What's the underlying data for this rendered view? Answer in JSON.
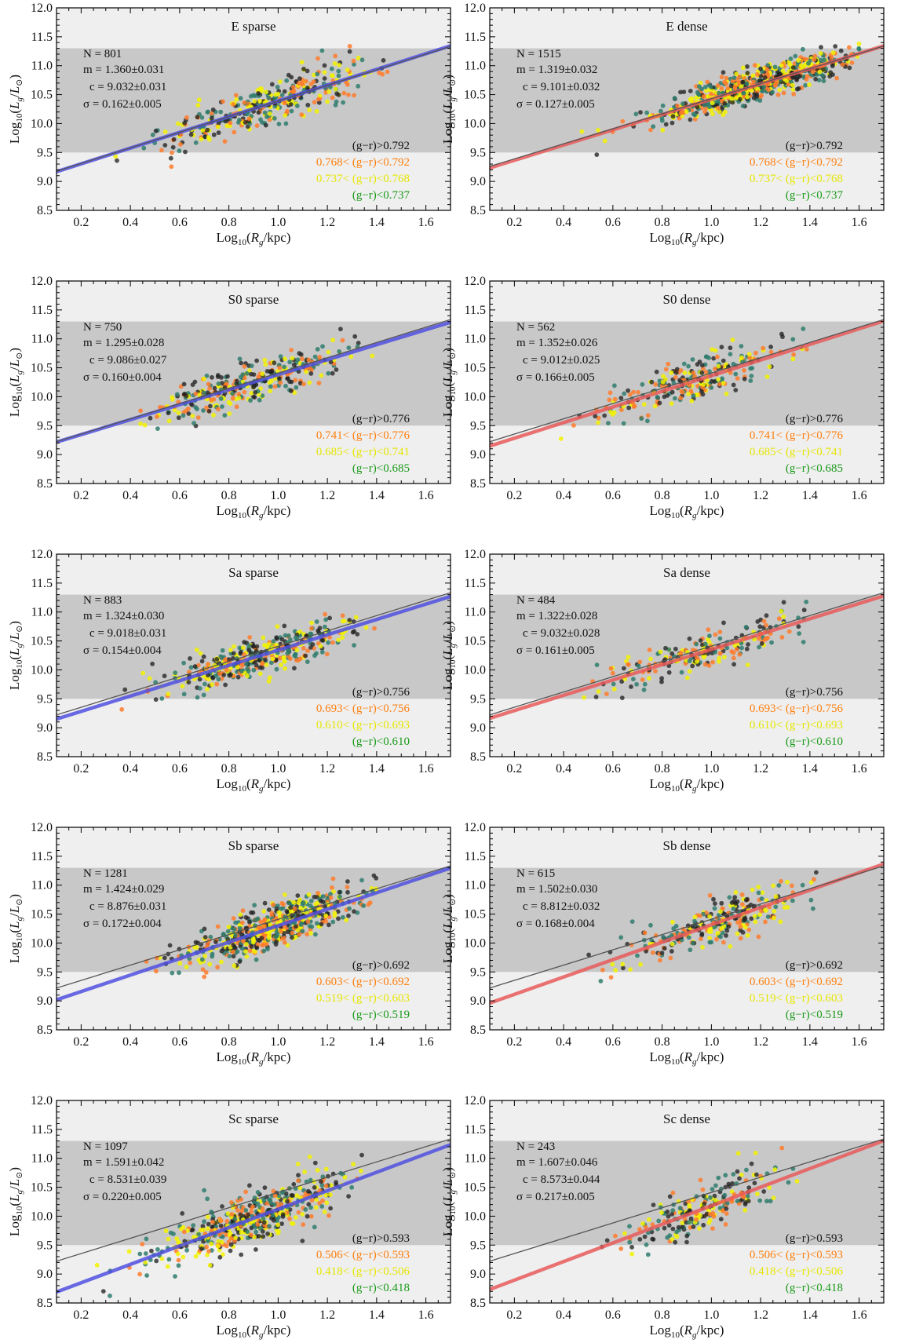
{
  "figure": {
    "xlabel": "Log10(Rg/kpc)",
    "ylabel": "Log10(Lg/L⊙)"
  },
  "colors": {
    "outer_band": "#efefef",
    "inner_band": "#c8c8c8",
    "sparse_fit": "#5050e0",
    "dense_fit": "#e85a5a",
    "reference_line": "#555555",
    "text_black": "#111111",
    "text_orange": "#ff7f0e",
    "text_yellow": "#e6e600",
    "text_green": "#1a9a1a",
    "pts_black": "#222222",
    "pts_orange": "#ff7b2a",
    "pts_yellow": "#f2f200",
    "pts_teal": "#2f7d6d"
  },
  "chart_data": [
    {
      "type": "scatter",
      "title": "E sparse",
      "env": "sparse",
      "xlim": [
        0.1,
        1.7
      ],
      "ylim": [
        8.5,
        12.0
      ],
      "xticks": [
        0.2,
        0.4,
        0.6,
        0.8,
        1.0,
        1.2,
        1.4,
        1.6
      ],
      "yticks": [
        8.5,
        9.0,
        9.5,
        10.0,
        10.5,
        11.0,
        11.5,
        12.0
      ],
      "band_outer": [
        8.5,
        12.0
      ],
      "band_inner": [
        9.5,
        11.3
      ],
      "stats": {
        "N": "N = 801",
        "m": "m = 1.360±0.031",
        "c": "c = 9.032±0.031",
        "sigma": "σ = 0.162±0.005"
      },
      "color_bins": [
        "(g−r)>0.792",
        "0.768< (g−r)<0.792",
        "0.737< (g−r)<0.768",
        "(g−r)<0.737"
      ],
      "fit": {
        "m": 1.36,
        "c": 9.032
      },
      "reference": {
        "m": 1.35,
        "c": 9.04
      },
      "cloud": {
        "xmin": 0.3,
        "xmax": 1.45,
        "xmean": 0.95,
        "xsd": 0.22,
        "scatter": 0.19
      }
    },
    {
      "type": "scatter",
      "title": "E dense",
      "env": "dense",
      "xlim": [
        0.1,
        1.7
      ],
      "ylim": [
        8.5,
        12.0
      ],
      "xticks": [
        0.2,
        0.4,
        0.6,
        0.8,
        1.0,
        1.2,
        1.4,
        1.6
      ],
      "yticks": [
        8.5,
        9.0,
        9.5,
        10.0,
        10.5,
        11.0,
        11.5,
        12.0
      ],
      "band_outer": [
        8.5,
        12.0
      ],
      "band_inner": [
        9.5,
        11.3
      ],
      "stats": {
        "N": "N = 1515",
        "m": "m = 1.319±0.032",
        "c": "c = 9.101±0.032",
        "sigma": "σ = 0.127±0.005"
      },
      "color_bins": [
        "(g−r)>0.792",
        "0.768< (g−r)<0.792",
        "0.737< (g−r)<0.768",
        "(g−r)<0.737"
      ],
      "fit": {
        "m": 1.319,
        "c": 9.101
      },
      "reference": {
        "m": 1.3,
        "c": 9.13
      },
      "cloud": {
        "xmin": 0.45,
        "xmax": 1.6,
        "xmean": 1.18,
        "xsd": 0.2,
        "scatter": 0.15
      }
    },
    {
      "type": "scatter",
      "title": "S0 sparse",
      "env": "sparse",
      "xlim": [
        0.1,
        1.7
      ],
      "ylim": [
        8.5,
        12.0
      ],
      "xticks": [
        0.2,
        0.4,
        0.6,
        0.8,
        1.0,
        1.2,
        1.4,
        1.6
      ],
      "yticks": [
        8.5,
        9.0,
        9.5,
        10.0,
        10.5,
        11.0,
        11.5,
        12.0
      ],
      "band_outer": [
        8.5,
        12.0
      ],
      "band_inner": [
        9.5,
        11.3
      ],
      "stats": {
        "N": "N = 750",
        "m": "m = 1.295±0.028",
        "c": "c = 9.086±0.027",
        "sigma": "σ = 0.160±0.004"
      },
      "color_bins": [
        "(g−r)>0.776",
        "0.741< (g−r)<0.776",
        "0.685< (g−r)<0.741",
        "(g−r)<0.685"
      ],
      "fit": {
        "m": 1.295,
        "c": 9.086
      },
      "reference": {
        "m": 1.32,
        "c": 9.09
      },
      "cloud": {
        "xmin": 0.4,
        "xmax": 1.4,
        "xmean": 0.88,
        "xsd": 0.2,
        "scatter": 0.18
      }
    },
    {
      "type": "scatter",
      "title": "S0 dense",
      "env": "dense",
      "xlim": [
        0.1,
        1.7
      ],
      "ylim": [
        8.5,
        12.0
      ],
      "xticks": [
        0.2,
        0.4,
        0.6,
        0.8,
        1.0,
        1.2,
        1.4,
        1.6
      ],
      "yticks": [
        8.5,
        9.0,
        9.5,
        10.0,
        10.5,
        11.0,
        11.5,
        12.0
      ],
      "band_outer": [
        8.5,
        12.0
      ],
      "band_inner": [
        9.5,
        11.3
      ],
      "stats": {
        "N": "N = 562",
        "m": "m = 1.352±0.026",
        "c": "c = 9.012±0.025",
        "sigma": "σ = 0.166±0.005"
      },
      "color_bins": [
        "(g−r)>0.776",
        "0.741< (g−r)<0.776",
        "0.685< (g−r)<0.741",
        "(g−r)<0.685"
      ],
      "fit": {
        "m": 1.352,
        "c": 9.012
      },
      "reference": {
        "m": 1.32,
        "c": 9.09
      },
      "cloud": {
        "xmin": 0.15,
        "xmax": 1.4,
        "xmean": 0.92,
        "xsd": 0.2,
        "scatter": 0.18
      }
    },
    {
      "type": "scatter",
      "title": "Sa sparse",
      "env": "sparse",
      "xlim": [
        0.1,
        1.7
      ],
      "ylim": [
        8.5,
        12.0
      ],
      "xticks": [
        0.2,
        0.4,
        0.6,
        0.8,
        1.0,
        1.2,
        1.4,
        1.6
      ],
      "yticks": [
        8.5,
        9.0,
        9.5,
        10.0,
        10.5,
        11.0,
        11.5,
        12.0
      ],
      "band_outer": [
        8.5,
        12.0
      ],
      "band_inner": [
        9.5,
        11.3
      ],
      "stats": {
        "N": "N = 883",
        "m": "m = 1.324±0.030",
        "c": "c = 9.018±0.031",
        "sigma": "σ = 0.154±0.004"
      },
      "color_bins": [
        "(g−r)>0.756",
        "0.693< (g−r)<0.756",
        "0.610< (g−r)<0.693",
        "(g−r)<0.610"
      ],
      "fit": {
        "m": 1.324,
        "c": 9.018
      },
      "reference": {
        "m": 1.32,
        "c": 9.09
      },
      "cloud": {
        "xmin": 0.25,
        "xmax": 1.4,
        "xmean": 0.92,
        "xsd": 0.2,
        "scatter": 0.17
      }
    },
    {
      "type": "scatter",
      "title": "Sa dense",
      "env": "dense",
      "xlim": [
        0.1,
        1.7
      ],
      "ylim": [
        8.5,
        12.0
      ],
      "xticks": [
        0.2,
        0.4,
        0.6,
        0.8,
        1.0,
        1.2,
        1.4,
        1.6
      ],
      "yticks": [
        8.5,
        9.0,
        9.5,
        10.0,
        10.5,
        11.0,
        11.5,
        12.0
      ],
      "band_outer": [
        8.5,
        12.0
      ],
      "band_inner": [
        9.5,
        11.3
      ],
      "stats": {
        "N": "N = 484",
        "m": "m = 1.322±0.028",
        "c": "c = 9.032±0.028",
        "sigma": "σ = 0.161±0.005"
      },
      "color_bins": [
        "(g−r)>0.756",
        "0.693< (g−r)<0.756",
        "0.610< (g−r)<0.693",
        "(g−r)<0.610"
      ],
      "fit": {
        "m": 1.322,
        "c": 9.032
      },
      "reference": {
        "m": 1.32,
        "c": 9.09
      },
      "cloud": {
        "xmin": 0.45,
        "xmax": 1.5,
        "xmean": 0.98,
        "xsd": 0.2,
        "scatter": 0.17
      }
    },
    {
      "type": "scatter",
      "title": "Sb sparse",
      "env": "sparse",
      "xlim": [
        0.1,
        1.7
      ],
      "ylim": [
        8.5,
        12.0
      ],
      "xticks": [
        0.2,
        0.4,
        0.6,
        0.8,
        1.0,
        1.2,
        1.4,
        1.6
      ],
      "yticks": [
        8.5,
        9.0,
        9.5,
        10.0,
        10.5,
        11.0,
        11.5,
        12.0
      ],
      "band_outer": [
        8.5,
        12.0
      ],
      "band_inner": [
        9.5,
        11.3
      ],
      "stats": {
        "N": "N = 1281",
        "m": "m = 1.424±0.029",
        "c": "c = 8.876±0.031",
        "sigma": "σ = 0.172±0.004"
      },
      "color_bins": [
        "(g−r)>0.692",
        "0.603< (g−r)<0.692",
        "0.519< (g−r)<0.603",
        "(g−r)<0.519"
      ],
      "fit": {
        "m": 1.424,
        "c": 8.876
      },
      "reference": {
        "m": 1.32,
        "c": 9.09
      },
      "cloud": {
        "xmin": 0.45,
        "xmax": 1.4,
        "xmean": 0.98,
        "xsd": 0.19,
        "scatter": 0.19
      }
    },
    {
      "type": "scatter",
      "title": "Sb dense",
      "env": "dense",
      "xlim": [
        0.1,
        1.7
      ],
      "ylim": [
        8.5,
        12.0
      ],
      "xticks": [
        0.2,
        0.4,
        0.6,
        0.8,
        1.0,
        1.2,
        1.4,
        1.6
      ],
      "yticks": [
        8.5,
        9.0,
        9.5,
        10.0,
        10.5,
        11.0,
        11.5,
        12.0
      ],
      "band_outer": [
        8.5,
        12.0
      ],
      "band_inner": [
        9.5,
        11.3
      ],
      "stats": {
        "N": "N = 615",
        "m": "m = 1.502±0.030",
        "c": "c = 8.812±0.032",
        "sigma": "σ = 0.168±0.004"
      },
      "color_bins": [
        "(g−r)>0.692",
        "0.603< (g−r)<0.692",
        "0.519< (g−r)<0.603",
        "(g−r)<0.519"
      ],
      "fit": {
        "m": 1.502,
        "c": 8.812
      },
      "reference": {
        "m": 1.32,
        "c": 9.09
      },
      "cloud": {
        "xmin": 0.45,
        "xmax": 1.45,
        "xmean": 1.05,
        "xsd": 0.18,
        "scatter": 0.18
      }
    },
    {
      "type": "scatter",
      "title": "Sc sparse",
      "env": "sparse",
      "xlim": [
        0.1,
        1.7
      ],
      "ylim": [
        8.5,
        12.0
      ],
      "xticks": [
        0.2,
        0.4,
        0.6,
        0.8,
        1.0,
        1.2,
        1.4,
        1.6
      ],
      "yticks": [
        8.5,
        9.0,
        9.5,
        10.0,
        10.5,
        11.0,
        11.5,
        12.0
      ],
      "band_outer": [
        8.5,
        12.0
      ],
      "band_inner": [
        9.5,
        11.3
      ],
      "stats": {
        "N": "N = 1097",
        "m": "m = 1.591±0.042",
        "c": "c = 8.531±0.039",
        "sigma": "σ = 0.220±0.005"
      },
      "color_bins": [
        "(g−r)>0.593",
        "0.506< (g−r)<0.593",
        "0.418< (g−r)<0.506",
        "(g−r)<0.418"
      ],
      "fit": {
        "m": 1.591,
        "c": 8.531
      },
      "reference": {
        "m": 1.32,
        "c": 9.09
      },
      "cloud": {
        "xmin": 0.25,
        "xmax": 1.35,
        "xmean": 0.9,
        "xsd": 0.2,
        "scatter": 0.23
      }
    },
    {
      "type": "scatter",
      "title": "Sc dense",
      "env": "dense",
      "xlim": [
        0.1,
        1.7
      ],
      "ylim": [
        8.5,
        12.0
      ],
      "xticks": [
        0.2,
        0.4,
        0.6,
        0.8,
        1.0,
        1.2,
        1.4,
        1.6
      ],
      "yticks": [
        8.5,
        9.0,
        9.5,
        10.0,
        10.5,
        11.0,
        11.5,
        12.0
      ],
      "band_outer": [
        8.5,
        12.0
      ],
      "band_inner": [
        9.5,
        11.3
      ],
      "stats": {
        "N": "N = 243",
        "m": "m = 1.607±0.046",
        "c": "c = 8.573±0.044",
        "sigma": "σ = 0.217±0.005"
      },
      "color_bins": [
        "(g−r)>0.593",
        "0.506< (g−r)<0.593",
        "0.418< (g−r)<0.506",
        "(g−r)<0.418"
      ],
      "fit": {
        "m": 1.607,
        "c": 8.573
      },
      "reference": {
        "m": 1.32,
        "c": 9.09
      },
      "cloud": {
        "xmin": 0.5,
        "xmax": 1.35,
        "xmean": 0.98,
        "xsd": 0.17,
        "scatter": 0.22
      }
    }
  ]
}
